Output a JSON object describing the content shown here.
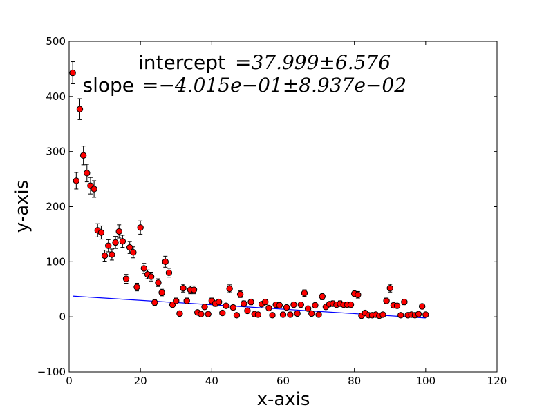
{
  "chart_data": {
    "type": "scatter",
    "xlabel": "x-axis",
    "ylabel": "y-axis",
    "xlim": [
      0,
      120
    ],
    "ylim": [
      -100,
      500
    ],
    "xticks": [
      0,
      20,
      40,
      60,
      80,
      100,
      120
    ],
    "yticks": [
      -100,
      0,
      100,
      200,
      300,
      400,
      500
    ],
    "grid": false,
    "annotations": [
      {
        "label": "intercept",
        "value": "=37.999±6.576"
      },
      {
        "label": "slope",
        "value": "=−4.015e−01±8.937e−02"
      }
    ],
    "colors": {
      "points": "#ff0000",
      "point_edge": "#000000",
      "fit_line": "#0000ff",
      "error_bars": "#000000"
    },
    "fit_line": {
      "intercept": 37.999,
      "slope": -0.4015,
      "x": [
        1,
        100
      ]
    },
    "series": [
      {
        "x": [
          1,
          2,
          3,
          4,
          5,
          6,
          7,
          8,
          9,
          10,
          11,
          12,
          13,
          14,
          15,
          16,
          17,
          18,
          19,
          20,
          21,
          22,
          23,
          24,
          25,
          26,
          27,
          28,
          29,
          30,
          31,
          32,
          33,
          34,
          35,
          36,
          37,
          38,
          39,
          40,
          41,
          42,
          43,
          44,
          45,
          46,
          47,
          48,
          49,
          50,
          51,
          52,
          53,
          54,
          55,
          56,
          57,
          58,
          59,
          60,
          61,
          62,
          63,
          64,
          65,
          66,
          67,
          68,
          69,
          70,
          71,
          72,
          73,
          74,
          75,
          76,
          77,
          78,
          79,
          80,
          81,
          82,
          83,
          84,
          85,
          86,
          87,
          88,
          89,
          90,
          91,
          92,
          93,
          94,
          95,
          96,
          97,
          98,
          99,
          100
        ],
        "y": [
          443,
          247,
          377,
          293,
          261,
          238,
          232,
          157,
          153,
          111,
          129,
          113,
          135,
          155,
          137,
          69,
          126,
          117,
          54,
          162,
          88,
          77,
          73,
          26,
          62,
          44,
          100,
          80,
          22,
          29,
          6,
          52,
          29,
          49,
          49,
          8,
          5,
          18,
          5,
          29,
          24,
          27,
          7,
          20,
          51,
          17,
          3,
          41,
          24,
          11,
          27,
          5,
          4,
          23,
          27,
          16,
          3,
          22,
          21,
          4,
          17,
          4,
          22,
          6,
          22,
          43,
          15,
          6,
          21,
          4,
          37,
          18,
          23,
          24,
          22,
          24,
          22,
          22,
          22,
          42,
          40,
          2,
          7,
          3,
          3,
          4,
          2,
          4,
          29,
          52,
          21,
          20,
          3,
          27,
          3,
          4,
          3,
          5,
          19,
          4
        ],
        "err": [
          20,
          15,
          19,
          17,
          16,
          15,
          15,
          12,
          12,
          10,
          11,
          10,
          11,
          12,
          11,
          8,
          11,
          10,
          7,
          12,
          9,
          8,
          8,
          5,
          7,
          6,
          10,
          8,
          4,
          5,
          2,
          7,
          5,
          7,
          7,
          3,
          2,
          4,
          2,
          5,
          5,
          5,
          2,
          4,
          7,
          4,
          1,
          6,
          5,
          3,
          5,
          2,
          2,
          4,
          5,
          4,
          1,
          4,
          4,
          2,
          4,
          2,
          4,
          2,
          4,
          6,
          3,
          2,
          4,
          2,
          6,
          4,
          4,
          5,
          4,
          5,
          4,
          4,
          4,
          6,
          6,
          1,
          2,
          1,
          1,
          2,
          1,
          2,
          5,
          7,
          4,
          4,
          1,
          5,
          1,
          2,
          1,
          2,
          4,
          2
        ]
      }
    ]
  }
}
